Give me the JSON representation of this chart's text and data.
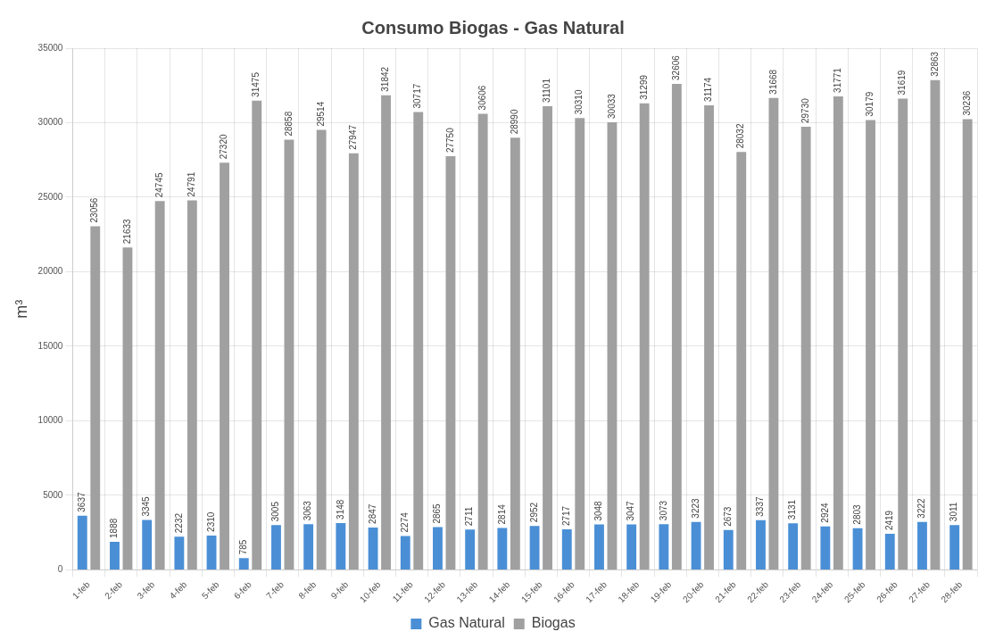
{
  "chart_data": {
    "type": "bar",
    "title": "Consumo Biogas - Gas Natural",
    "ylabel": "m³",
    "categories": [
      "1-feb",
      "2-feb",
      "3-feb",
      "4-feb",
      "5-feb",
      "6-feb",
      "7-feb",
      "8-feb",
      "9-feb",
      "10-feb",
      "11-feb",
      "12-feb",
      "13-feb",
      "14-feb",
      "15-feb",
      "16-feb",
      "17-feb",
      "18-feb",
      "19-feb",
      "20-feb",
      "21-feb",
      "22-feb",
      "23-feb",
      "24-feb",
      "25-feb",
      "26-feb",
      "27-feb",
      "28-feb"
    ],
    "series": [
      {
        "name": "Gas Natural",
        "color": "#4a8fd6",
        "values": [
          3637,
          1888,
          3345,
          2232,
          2310,
          785,
          3005,
          3063,
          3148,
          2847,
          2274,
          2865,
          2711,
          2814,
          2952,
          2717,
          3048,
          3047,
          3073,
          3223,
          2673,
          3337,
          3131,
          2924,
          2803,
          2419,
          3222,
          3011
        ]
      },
      {
        "name": "Biogas",
        "color": "#a0a0a0",
        "values": [
          23056,
          21633,
          24745,
          24791,
          27320,
          31475,
          28858,
          29514,
          27947,
          31842,
          30717,
          27750,
          30606,
          28990,
          31101,
          30310,
          30033,
          31299,
          32606,
          31174,
          28032,
          31668,
          29730,
          31771,
          30179,
          31619,
          32863,
          30236
        ]
      }
    ],
    "ylim": [
      0,
      35000
    ],
    "yticks": [
      0,
      5000,
      10000,
      15000,
      20000,
      25000,
      30000,
      35000
    ],
    "grid": true,
    "legend": "bottom",
    "data_labels": true
  }
}
